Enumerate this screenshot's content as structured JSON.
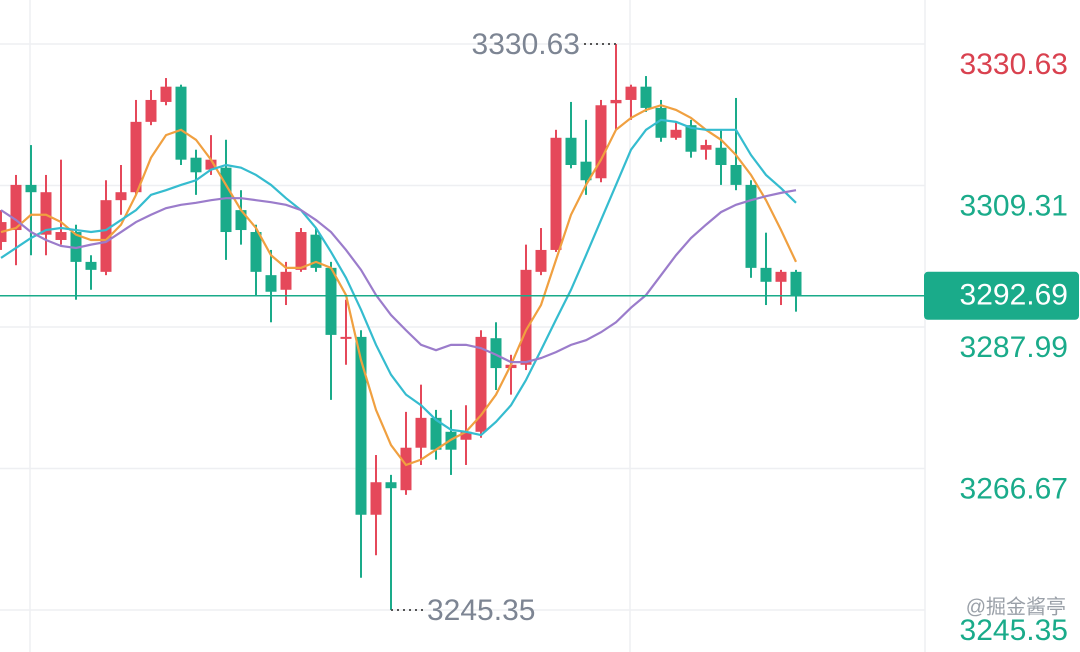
{
  "chart_data": {
    "type": "candlestick",
    "up_color": "#e5485a",
    "down_color": "#1aab8a",
    "open": [
      3300.8,
      3302.6,
      3309.4,
      3301.9,
      3301.1,
      3302.3,
      3297.8,
      3296.3,
      3307.1,
      3308.3,
      3318.9,
      3321.9,
      3324.2,
      3313.5,
      3311.7,
      3312.0,
      3305.6,
      3302.3,
      3295.8,
      3293.6,
      3296.6,
      3301.9,
      3296.9,
      3286.2,
      3286.5,
      3259.7,
      3264.6,
      3263.4,
      3269.8,
      3274.3,
      3272.2,
      3271.0,
      3272.2,
      3286.3,
      3281.8,
      3282.3,
      3296.3,
      3299.6,
      3316.5,
      3312.9,
      3310.4,
      3321.7,
      3322.2,
      3324.2,
      3321.0,
      3316.5,
      3318.4,
      3314.7,
      3315.0,
      3312.4,
      3309.4,
      3296.9,
      3294.8,
      3296.3
    ],
    "high": [
      3305.6,
      3310.9,
      3315.4,
      3310.9,
      3313.2,
      3303.4,
      3298.8,
      3310.1,
      3312.4,
      3322.2,
      3323.7,
      3325.5,
      3324.5,
      3314.7,
      3316.9,
      3316.2,
      3308.6,
      3303.4,
      3299.6,
      3297.8,
      3302.9,
      3302.9,
      3297.8,
      3292.1,
      3287.5,
      3268.7,
      3265.7,
      3275.2,
      3279.3,
      3275.5,
      3275.5,
      3276.2,
      3287.5,
      3288.7,
      3283.8,
      3300.4,
      3302.9,
      3317.7,
      3321.9,
      3319.2,
      3322.2,
      3330.63,
      3324.5,
      3325.8,
      3322.2,
      3318.9,
      3319.2,
      3316.2,
      3317.7,
      3322.5,
      3310.1,
      3302.2,
      3296.6,
      3296.6
    ],
    "low": [
      3299.6,
      3297.3,
      3298.8,
      3298.8,
      3300.4,
      3292.1,
      3293.6,
      3295.8,
      3304.9,
      3307.9,
      3318.4,
      3321.4,
      3312.4,
      3307.9,
      3310.9,
      3298.1,
      3300.4,
      3292.8,
      3288.7,
      3291.3,
      3296.3,
      3296.3,
      3277.0,
      3282.3,
      3250.2,
      3253.6,
      3245.35,
      3262.7,
      3267.2,
      3268.0,
      3265.7,
      3267.2,
      3271.3,
      3278.5,
      3277.8,
      3281.5,
      3295.8,
      3299.3,
      3311.9,
      3307.9,
      3309.8,
      3317.7,
      3319.2,
      3320.4,
      3315.9,
      3316.2,
      3313.5,
      3313.2,
      3309.4,
      3308.6,
      3295.4,
      3291.3,
      3291.3,
      3290.3
    ],
    "close": [
      3303.8,
      3309.4,
      3308.3,
      3308.3,
      3302.3,
      3297.8,
      3296.6,
      3307.1,
      3308.3,
      3318.9,
      3322.2,
      3324.2,
      3313.2,
      3311.3,
      3313.2,
      3302.3,
      3302.6,
      3296.3,
      3293.3,
      3296.3,
      3302.3,
      3296.9,
      3286.8,
      3286.5,
      3259.7,
      3264.6,
      3263.7,
      3269.8,
      3274.3,
      3269.5,
      3269.5,
      3272.2,
      3286.5,
      3281.8,
      3282.3,
      3296.6,
      3299.6,
      3316.5,
      3312.4,
      3310.1,
      3321.4,
      3322.2,
      3324.2,
      3321.0,
      3316.5,
      3317.7,
      3314.4,
      3315.4,
      3312.4,
      3309.4,
      3296.9,
      3294.8,
      3296.3,
      3292.69
    ],
    "series": [
      {
        "color": "#f0a040",
        "values": [
          3302.3,
          3302.9,
          3304.9,
          3304.9,
          3303.8,
          3301.9,
          3301.1,
          3301.1,
          3303.4,
          3307.9,
          3313.5,
          3316.9,
          3317.7,
          3316.2,
          3313.2,
          3309.4,
          3305.6,
          3302.9,
          3298.8,
          3296.9,
          3296.9,
          3297.8,
          3296.9,
          3292.8,
          3283.0,
          3275.5,
          3270.2,
          3267.2,
          3268.0,
          3269.5,
          3271.0,
          3272.2,
          3274.7,
          3277.8,
          3282.3,
          3287.5,
          3291.3,
          3298.1,
          3304.9,
          3309.4,
          3313.2,
          3317.7,
          3319.5,
          3320.7,
          3321.4,
          3320.7,
          3319.5,
          3317.7,
          3316.2,
          3313.9,
          3310.9,
          3307.1,
          3302.6,
          3297.8
        ]
      },
      {
        "color": "#35bccf",
        "values": [
          3298.4,
          3299.9,
          3301.4,
          3302.6,
          3302.9,
          3302.6,
          3302.3,
          3302.6,
          3304.1,
          3305.6,
          3307.9,
          3308.6,
          3309.4,
          3310.1,
          3311.7,
          3312.4,
          3312.0,
          3310.9,
          3309.4,
          3307.4,
          3305.6,
          3302.9,
          3299.3,
          3295.4,
          3290.6,
          3285.3,
          3280.8,
          3277.8,
          3276.2,
          3274.0,
          3272.5,
          3272.2,
          3271.7,
          3273.7,
          3276.2,
          3280.0,
          3284.5,
          3289.1,
          3293.6,
          3298.8,
          3304.1,
          3309.4,
          3314.7,
          3317.7,
          3319.2,
          3318.9,
          3318.0,
          3317.7,
          3317.7,
          3317.7,
          3313.9,
          3310.9,
          3308.9,
          3306.7
        ]
      },
      {
        "color": "#9b7ccb",
        "values": [
          3305.6,
          3304.1,
          3302.3,
          3301.1,
          3300.2,
          3299.9,
          3300.4,
          3300.8,
          3302.3,
          3303.8,
          3304.9,
          3305.9,
          3306.4,
          3306.7,
          3307.1,
          3307.4,
          3307.4,
          3307.1,
          3306.8,
          3306.4,
          3305.6,
          3304.1,
          3302.3,
          3299.6,
          3296.6,
          3292.8,
          3289.8,
          3287.5,
          3285.3,
          3284.5,
          3285.3,
          3285.3,
          3284.8,
          3283.8,
          3282.7,
          3282.7,
          3283.3,
          3284.2,
          3285.3,
          3286.0,
          3287.2,
          3288.7,
          3290.9,
          3292.8,
          3295.8,
          3298.8,
          3301.4,
          3303.4,
          3305.3,
          3306.4,
          3307.1,
          3307.7,
          3308.2,
          3308.6
        ]
      }
    ],
    "ylim": [
      3239.02,
      3337.26
    ],
    "yticks": [
      3330.63,
      3309.31,
      3287.99,
      3266.67,
      3245.35
    ],
    "ytick_colors": [
      "#d9414f",
      "#1aab8a",
      "#1aab8a",
      "#1aab8a",
      "#1aab8a"
    ],
    "grid": true,
    "last_price": 3292.69,
    "last_price_color": "#1aab8a",
    "max_label": 3330.63,
    "min_label": 3245.35,
    "watermark": "@掘金酱亭"
  }
}
